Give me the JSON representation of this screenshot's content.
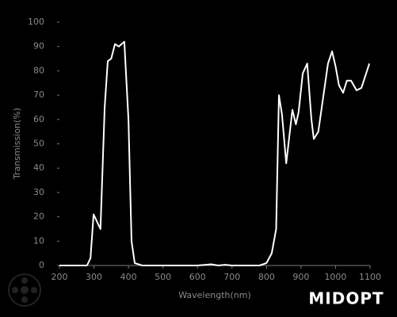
{
  "chart_data": {
    "type": "line",
    "x_label": "Wavelength(nm)",
    "y_label": "Transmission(%)",
    "brand": "MIDOPT",
    "x": [
      200,
      280,
      290,
      299,
      319,
      331,
      340,
      350,
      361,
      372,
      388,
      400,
      409,
      418,
      440,
      500,
      600,
      640,
      660,
      680,
      700,
      780,
      800,
      815,
      828,
      836,
      845,
      857,
      875,
      885,
      893,
      905,
      918,
      930,
      937,
      950,
      967,
      978,
      990,
      1000,
      1010,
      1022,
      1033,
      1045,
      1061,
      1075,
      1098
    ],
    "series": [
      {
        "name": "Transmission",
        "color": "#ffffff",
        "values": [
          0,
          0,
          3,
          21,
          15,
          65,
          84,
          85,
          91,
          90,
          92,
          60,
          10,
          1,
          0,
          0,
          0,
          0.5,
          0,
          0.3,
          0,
          0,
          1,
          5,
          15,
          70,
          62,
          42,
          64,
          58,
          63,
          79,
          83,
          60,
          52,
          55,
          72,
          83,
          88,
          82,
          74,
          71,
          76,
          76,
          72,
          73,
          83
        ]
      }
    ],
    "xlim": [
      200,
      1100
    ],
    "ylim": [
      0,
      100
    ],
    "xticks": [
      200,
      300,
      400,
      500,
      600,
      700,
      800,
      900,
      1000,
      1100
    ],
    "yticks": [
      0,
      10,
      20,
      30,
      40,
      50,
      60,
      70,
      80,
      90,
      100
    ]
  }
}
